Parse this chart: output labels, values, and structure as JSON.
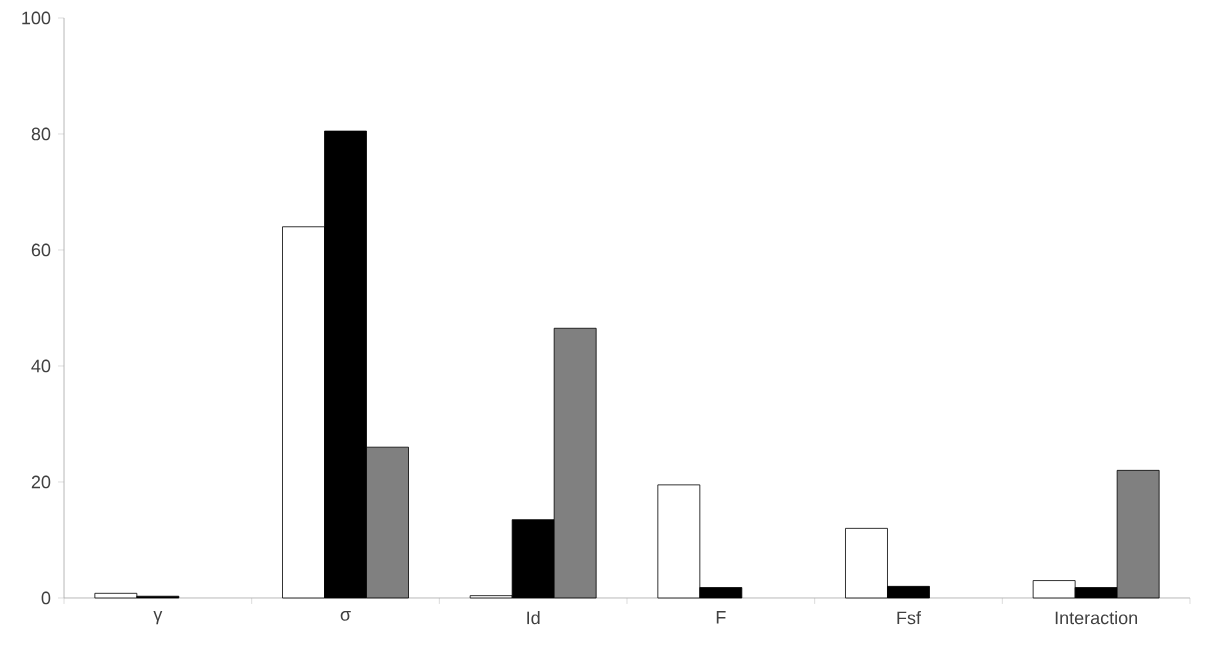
{
  "chart_data": {
    "type": "bar",
    "categories": [
      "γ",
      "σ",
      "Id",
      "F",
      "Fsf",
      "Interaction"
    ],
    "series": [
      {
        "color": "#ffffff",
        "values": [
          0.8,
          64,
          0.4,
          19.5,
          12,
          3
        ]
      },
      {
        "color": "#000000",
        "values": [
          0.3,
          80.5,
          13.5,
          1.8,
          2,
          1.8
        ]
      },
      {
        "color": "#808080",
        "values": [
          0,
          26,
          46.5,
          0,
          0,
          22
        ]
      }
    ],
    "ylim": [
      0,
      100
    ],
    "yticks": [
      0,
      20,
      40,
      60,
      80,
      100
    ]
  }
}
